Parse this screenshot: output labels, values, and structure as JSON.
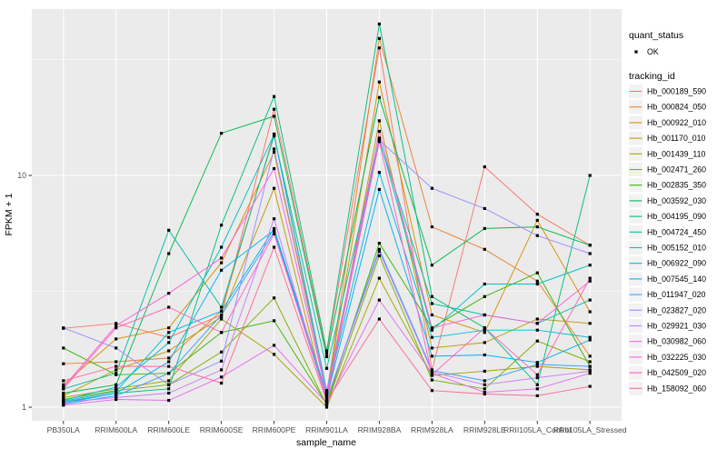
{
  "chart_data": {
    "type": "line",
    "title": "",
    "xlabel": "sample_name",
    "ylabel": "FPKM + 1",
    "y_scale": "log10",
    "ylim": [
      0.87,
      52
    ],
    "yticks": [
      {
        "label": "1",
        "value": 1
      },
      {
        "label": "10",
        "value": 10
      }
    ],
    "y_minor_values": [
      3.162,
      31.62
    ],
    "grid": true,
    "legend_position": "right",
    "categories": [
      "PB350LA",
      "RRIM600LA",
      "RRIM600LE",
      "RRIM600SE",
      "RRIM600PE",
      "RRIM901LA",
      "RRIM928BA",
      "RRIM928LA",
      "RRIM928LE",
      "RRII105LA_Control",
      "RRII105LA_Stressed"
    ],
    "series": [
      {
        "name": "Hb_000189_590",
        "color": "#F8766D",
        "values": [
          2.19,
          2.3,
          2.0,
          2.5,
          19.3,
          1.7,
          35.5,
          1.45,
          10.9,
          6.8,
          5.0
        ]
      },
      {
        "name": "Hb_000824_050",
        "color": "#EA8331",
        "values": [
          1.54,
          1.57,
          1.63,
          2.6,
          15.1,
          1.12,
          39.0,
          6.0,
          4.8,
          3.5,
          1.66
        ]
      },
      {
        "name": "Hb_000922_010",
        "color": "#D89000",
        "values": [
          1.25,
          1.97,
          2.2,
          4.2,
          12.6,
          1.15,
          25.3,
          2.5,
          2.1,
          6.4,
          2.58
        ]
      },
      {
        "name": "Hb_001170_010",
        "color": "#C09B00",
        "values": [
          1.12,
          1.45,
          1.75,
          2.45,
          8.8,
          1.05,
          17.2,
          1.8,
          1.9,
          2.4,
          2.3
        ]
      },
      {
        "name": "Hb_001439_110",
        "color": "#A3A500",
        "values": [
          1.1,
          1.2,
          1.3,
          2.4,
          1.69,
          1.0,
          3.6,
          1.37,
          1.43,
          1.5,
          1.45
        ]
      },
      {
        "name": "Hb_002471_260",
        "color": "#7CAE00",
        "values": [
          1.08,
          1.18,
          1.25,
          1.73,
          2.96,
          1.02,
          4.5,
          1.31,
          1.2,
          1.93,
          1.57
        ]
      },
      {
        "name": "Hb_002835_350",
        "color": "#39B600",
        "values": [
          1.8,
          1.38,
          1.4,
          2.1,
          2.36,
          1.03,
          5.1,
          2.2,
          3.0,
          3.8,
          1.5
        ]
      },
      {
        "name": "Hb_003592_030",
        "color": "#00BB4E",
        "values": [
          1.15,
          1.25,
          4.6,
          15.2,
          18.0,
          1.65,
          21.7,
          4.1,
          5.9,
          6.0,
          5.0
        ]
      },
      {
        "name": "Hb_004195_090",
        "color": "#00BF7D",
        "values": [
          1.05,
          1.15,
          1.2,
          6.1,
          21.9,
          1.75,
          45.0,
          3.0,
          2.2,
          1.25,
          10.0
        ]
      },
      {
        "name": "Hb_004724_450",
        "color": "#00C1A3",
        "values": [
          1.2,
          1.4,
          5.8,
          2.7,
          14.8,
          1.47,
          14.2,
          2.8,
          2.5,
          2.3,
          2.9
        ]
      },
      {
        "name": "Hb_005152_010",
        "color": "#00BFC4",
        "values": [
          1.07,
          1.22,
          1.9,
          4.9,
          15.0,
          1.18,
          14.5,
          2.15,
          3.4,
          3.4,
          4.1
        ]
      },
      {
        "name": "Hb_006922_090",
        "color": "#00BAE0",
        "values": [
          1.06,
          1.17,
          2.1,
          2.6,
          5.9,
          1.14,
          10.3,
          2.0,
          2.15,
          2.15,
          2.0
        ]
      },
      {
        "name": "Hb_007545_140",
        "color": "#00B0F6",
        "values": [
          1.04,
          1.15,
          1.57,
          3.9,
          5.8,
          1.1,
          8.7,
          1.66,
          1.68,
          1.56,
          1.95
        ]
      },
      {
        "name": "Hb_011947_020",
        "color": "#35A2FF",
        "values": [
          1.03,
          1.12,
          1.4,
          2.5,
          5.7,
          1.08,
          4.8,
          1.44,
          1.3,
          1.53,
          1.5
        ]
      },
      {
        "name": "Hb_023827_020",
        "color": "#9590FF",
        "values": [
          2.2,
          1.8,
          1.25,
          1.58,
          13.0,
          1.16,
          14.2,
          8.8,
          7.2,
          5.5,
          4.6
        ]
      },
      {
        "name": "Hb_029921_030",
        "color": "#C77CFF",
        "values": [
          1.05,
          1.1,
          1.15,
          1.45,
          6.5,
          1.07,
          4.7,
          1.42,
          1.25,
          1.34,
          1.43
        ]
      },
      {
        "name": "Hb_030982_060",
        "color": "#E76BF3",
        "values": [
          1.02,
          1.08,
          1.07,
          1.35,
          1.85,
          1.04,
          2.9,
          1.4,
          1.16,
          1.2,
          1.4
        ]
      },
      {
        "name": "Hb_032225_030",
        "color": "#FA62DB",
        "values": [
          1.22,
          2.25,
          3.1,
          4.4,
          10.7,
          1.13,
          15.5,
          2.2,
          2.5,
          2.3,
          3.5
        ]
      },
      {
        "name": "Hb_042509_020",
        "color": "#FF62BC",
        "values": [
          1.2,
          2.2,
          2.7,
          2.1,
          5.6,
          1.1,
          14.0,
          1.38,
          2.2,
          1.38,
          3.6
        ]
      },
      {
        "name": "Hb_158092_060",
        "color": "#FF6A98",
        "values": [
          1.3,
          1.5,
          1.5,
          1.27,
          4.9,
          1.06,
          2.4,
          1.18,
          1.14,
          1.12,
          1.23
        ]
      }
    ],
    "legend": {
      "quant_status_title": "quant_status",
      "quant_status_items": [
        "OK"
      ],
      "tracking_title": "tracking_id"
    },
    "colors": {
      "panel_bg": "#EBEBEB",
      "grid": "#FFFFFF",
      "tick_text": "#4D4D4D",
      "tick_mark": "#333333",
      "point": "#000000",
      "key_bg": "#F2F2F2",
      "title_text": "#000000"
    }
  }
}
